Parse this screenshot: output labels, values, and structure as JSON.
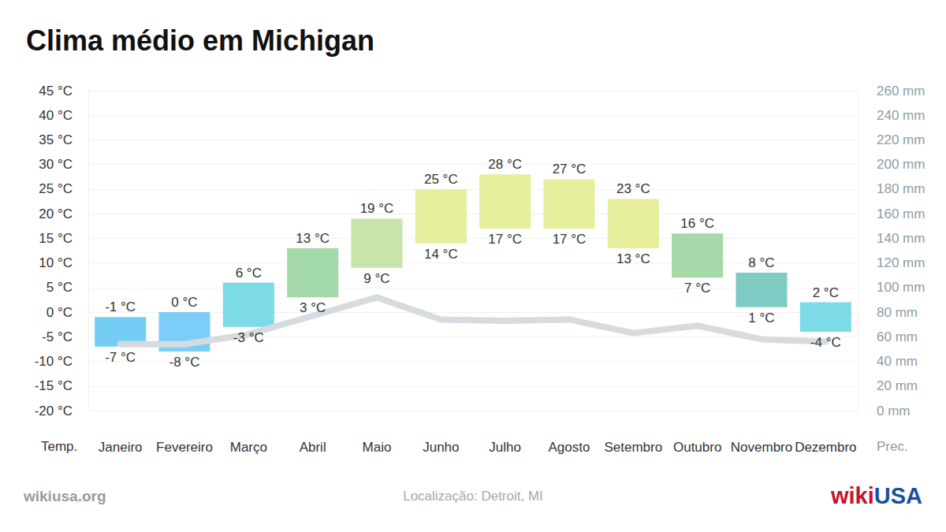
{
  "chart_data": {
    "type": "range_bar",
    "title": "Clima médio em Michigan",
    "categories": [
      "Janeiro",
      "Fevereiro",
      "Março",
      "Abril",
      "Maio",
      "Junho",
      "Julho",
      "Agosto",
      "Setembro",
      "Outubro",
      "Novembro",
      "Dezembro"
    ],
    "series": [
      {
        "type": "range_bar",
        "axis": "y",
        "high": [
          -1,
          0,
          6,
          13,
          19,
          25,
          28,
          27,
          23,
          16,
          8,
          2
        ],
        "high_labels": [
          "-1 °C",
          "0 °C",
          "6 °C",
          "13 °C",
          "19 °C",
          "25 °C",
          "28 °C",
          "27 °C",
          "23 °C",
          "16 °C",
          "8 °C",
          "2 °C"
        ],
        "low": [
          -7,
          -8,
          -3,
          3,
          9,
          14,
          17,
          17,
          13,
          7,
          1,
          -4
        ],
        "low_labels": [
          "-7 °C",
          "-8 °C",
          "-3 °C",
          "3 °C",
          "9 °C",
          "14 °C",
          "17 °C",
          "17 °C",
          "13 °C",
          "7 °C",
          "1 °C",
          "-4 °C"
        ],
        "colors": [
          "#74cdf5",
          "#7ccdf8",
          "#7ddbe8",
          "#a3d8a9",
          "#c8e4ab",
          "#e7ee9c",
          "#e7ee9c",
          "#e7ee9c",
          "#e7ee9c",
          "#a6d8aa",
          "#7fcbc3",
          "#7ddbe8"
        ],
        "data_labels": true
      },
      {
        "type": "line",
        "axis": "y2",
        "color": "#d5dbdf",
        "values": [
          54,
          54,
          62,
          77,
          92,
          74,
          73,
          74,
          63,
          69,
          58,
          56
        ]
      }
    ],
    "y_label": "Temp.",
    "y2_label": "Prec.",
    "ylim": [
      -20,
      45
    ],
    "yticks": [
      {
        "value": -20,
        "label": "-20 °C"
      },
      {
        "value": -15,
        "label": "-15 °C"
      },
      {
        "value": -10,
        "label": "-10 °C"
      },
      {
        "value": -5,
        "label": "-5 °C"
      },
      {
        "value": 0,
        "label": "0 °C"
      },
      {
        "value": 5,
        "label": "5 °C"
      },
      {
        "value": 10,
        "label": "10 °C"
      },
      {
        "value": 15,
        "label": "15 °C"
      },
      {
        "value": 20,
        "label": "20 °C"
      },
      {
        "value": 25,
        "label": "25 °C"
      },
      {
        "value": 30,
        "label": "30 °C"
      },
      {
        "value": 35,
        "label": "35 °C"
      },
      {
        "value": 40,
        "label": "40 °C"
      },
      {
        "value": 45,
        "label": "45 °C"
      }
    ],
    "y2lim": [
      0,
      260
    ],
    "y2ticks": [
      {
        "value": 0,
        "label": "0 mm"
      },
      {
        "value": 20,
        "label": "20 mm"
      },
      {
        "value": 40,
        "label": "40 mm"
      },
      {
        "value": 60,
        "label": "60 mm"
      },
      {
        "value": 80,
        "label": "80 mm"
      },
      {
        "value": 100,
        "label": "100 mm"
      },
      {
        "value": 120,
        "label": "120 mm"
      },
      {
        "value": 140,
        "label": "140 mm"
      },
      {
        "value": 160,
        "label": "160 mm"
      },
      {
        "value": 180,
        "label": "180 mm"
      },
      {
        "value": 200,
        "label": "200 mm"
      },
      {
        "value": 220,
        "label": "220 mm"
      },
      {
        "value": 240,
        "label": "240 mm"
      },
      {
        "value": 260,
        "label": "260 mm"
      }
    ],
    "grid": true,
    "source": "wikiusa.org",
    "location": "Localização: Detroit, MI",
    "logo": [
      "wiki",
      "USA"
    ]
  }
}
